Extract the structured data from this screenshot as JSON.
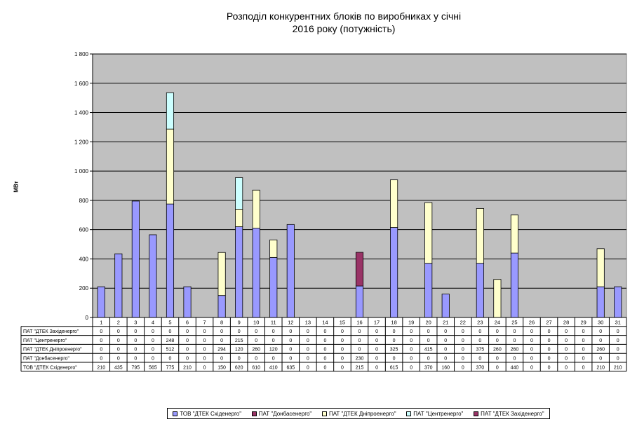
{
  "chart_data": {
    "type": "bar",
    "stacked": true,
    "title_line1": "Розподіл конкурентних блоків по виробниках у січні",
    "title_line2": "2016 року (потужність)",
    "ylabel": "МВт",
    "ylim": [
      0,
      1800
    ],
    "y_ticks": [
      "0",
      "200",
      "400",
      "600",
      "800",
      "1 000",
      "1 200",
      "1 400",
      "1 600",
      "1 800"
    ],
    "y_tick_values": [
      0,
      200,
      400,
      600,
      800,
      1000,
      1200,
      1400,
      1600,
      1800
    ],
    "grid": true,
    "legend_position": "bottom",
    "categories": [
      "1",
      "2",
      "3",
      "4",
      "5",
      "6",
      "7",
      "8",
      "9",
      "10",
      "11",
      "12",
      "13",
      "14",
      "15",
      "16",
      "17",
      "18",
      "19",
      "20",
      "21",
      "22",
      "23",
      "24",
      "25",
      "26",
      "27",
      "28",
      "29",
      "30",
      "31"
    ],
    "series": [
      {
        "name": "ПАТ \"ДТЕК Західенерго\"",
        "color": "#993366",
        "values": [
          0,
          0,
          0,
          0,
          0,
          0,
          0,
          0,
          0,
          0,
          0,
          0,
          0,
          0,
          0,
          0,
          0,
          0,
          0,
          0,
          0,
          0,
          0,
          0,
          0,
          0,
          0,
          0,
          0,
          0,
          0
        ]
      },
      {
        "name": "ПАТ \"Центренерго\"",
        "color": "#ccffff",
        "values": [
          0,
          0,
          0,
          0,
          248,
          0,
          0,
          0,
          215,
          0,
          0,
          0,
          0,
          0,
          0,
          0,
          0,
          0,
          0,
          0,
          0,
          0,
          0,
          0,
          0,
          0,
          0,
          0,
          0,
          0,
          0
        ]
      },
      {
        "name": "ПАТ \"ДТЕК Дніпроенерго\"",
        "color": "#ffffcc",
        "values": [
          0,
          0,
          0,
          0,
          512,
          0,
          0,
          294,
          120,
          260,
          120,
          0,
          0,
          0,
          0,
          0,
          0,
          325,
          0,
          415,
          0,
          0,
          375,
          260,
          260,
          0,
          0,
          0,
          0,
          260,
          0
        ]
      },
      {
        "name": "ПАТ \"Донбасенерго\"",
        "color": "#993366",
        "values": [
          0,
          0,
          0,
          0,
          0,
          0,
          0,
          0,
          0,
          0,
          0,
          0,
          0,
          0,
          0,
          230,
          0,
          0,
          0,
          0,
          0,
          0,
          0,
          0,
          0,
          0,
          0,
          0,
          0,
          0,
          0
        ]
      },
      {
        "name": "ТОВ \"ДТЕК Східенерго\"",
        "color": "#9999ff",
        "values": [
          210,
          435,
          795,
          565,
          775,
          210,
          0,
          150,
          620,
          610,
          410,
          635,
          0,
          0,
          0,
          215,
          0,
          615,
          0,
          370,
          160,
          0,
          370,
          0,
          440,
          0,
          0,
          0,
          0,
          210,
          210
        ]
      }
    ],
    "legend_order": [
      {
        "name": "ТОВ \"ДТЕК Східенерго\"",
        "color": "#9999ff"
      },
      {
        "name": "ПАТ \"Донбасенерго\"",
        "color": "#993366"
      },
      {
        "name": "ПАТ \"ДТЕК Дніпроенерго\"",
        "color": "#ffffcc"
      },
      {
        "name": "ПАТ \"Центренерго\"",
        "color": "#ccffff"
      },
      {
        "name": "ПАТ \"ДТЕК Західенерго\"",
        "color": "#993366"
      }
    ],
    "colors": {
      "plot_background": "#c0c0c0",
      "gridline": "#000000"
    }
  }
}
